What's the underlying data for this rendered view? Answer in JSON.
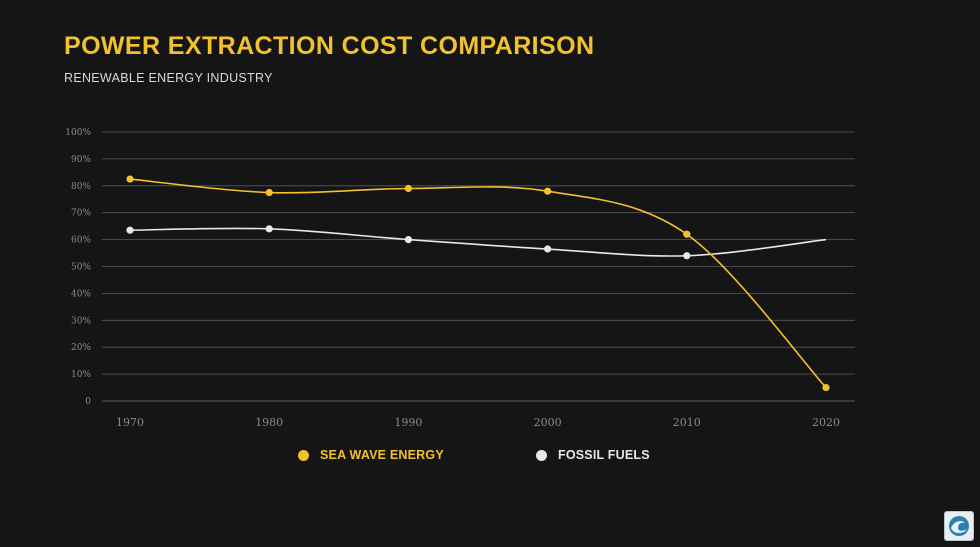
{
  "header": {
    "title": "POWER EXTRACTION COST COMPARISON",
    "subtitle": "RENEWABLE ENERGY INDUSTRY"
  },
  "colors": {
    "accent": "#f2c12e",
    "series_sea": "#f2c12e",
    "series_fossil": "#e8e8e8",
    "grid": "#5a5a5a",
    "background": "#151515"
  },
  "chart_data": {
    "type": "line",
    "categories": [
      "1970",
      "1980",
      "1990",
      "2000",
      "2010",
      "2020"
    ],
    "y_ticks": [
      "0",
      "10%",
      "20%",
      "30%",
      "40%",
      "50%",
      "60%",
      "70%",
      "80%",
      "90%",
      "100%"
    ],
    "ylim": [
      0,
      100
    ],
    "grid": true,
    "legend_position": "bottom",
    "series": [
      {
        "name": "SEA WAVE ENERGY",
        "color": "#f2c12e",
        "values": [
          82.5,
          77.5,
          79,
          78,
          62,
          5
        ],
        "markers": [
          true,
          true,
          true,
          true,
          true,
          true
        ]
      },
      {
        "name": "FOSSIL FUELS",
        "color": "#e8e8e8",
        "values": [
          63.5,
          64,
          60,
          56.5,
          54,
          60
        ],
        "markers": [
          true,
          true,
          true,
          true,
          true,
          false
        ]
      }
    ]
  },
  "logo": {
    "icon": "wave-logo-icon"
  }
}
